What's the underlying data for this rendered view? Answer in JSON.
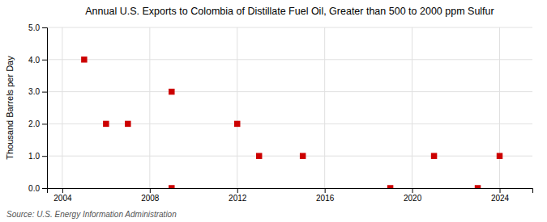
{
  "chart_data": {
    "type": "scatter",
    "title": "Annual U.S. Exports to Colombia of Distillate Fuel Oil, Greater than 500 to 2000 ppm Sulfur",
    "y_label": "Thousand Barrels per Day",
    "annotation": "Source: U.S. Energy Information Administration",
    "x": [
      2005,
      2006,
      2007,
      2009,
      2009,
      2012,
      2013,
      2015,
      2019,
      2021,
      2023,
      2024
    ],
    "values": [
      4.0,
      2.0,
      2.0,
      0.0,
      3.0,
      2.0,
      1.0,
      1.0,
      0.0,
      1.0,
      0.0,
      1.0
    ],
    "color": "#cc0000",
    "marker": "square",
    "xlim": [
      2003.3,
      2025.5
    ],
    "ylim": [
      0.0,
      5.0
    ],
    "xticks": [
      2004,
      2008,
      2012,
      2016,
      2020,
      2024
    ],
    "yticks": [
      {
        "value": 0.0,
        "label": "0.0"
      },
      {
        "value": 1.0,
        "label": "1.0"
      },
      {
        "value": 2.0,
        "label": "2.0"
      },
      {
        "value": 3.0,
        "label": "3.0"
      },
      {
        "value": 4.0,
        "label": "4.0"
      },
      {
        "value": 5.0,
        "label": "5.0"
      }
    ],
    "grid": true
  }
}
